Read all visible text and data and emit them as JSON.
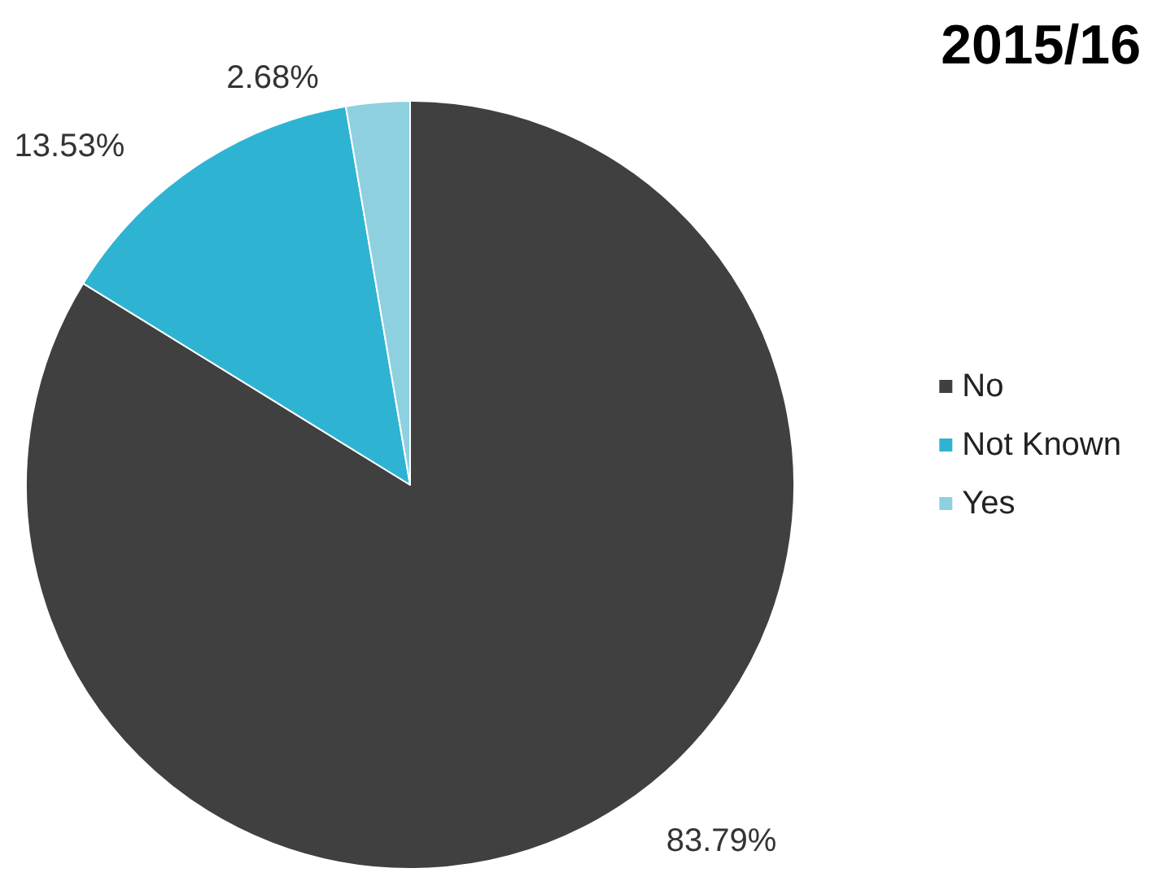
{
  "chart_data": {
    "type": "pie",
    "title": "2015/16",
    "categories": [
      "No",
      "Not Known",
      "Yes"
    ],
    "values": [
      83.79,
      13.53,
      2.68
    ],
    "value_labels": [
      "83.79%",
      "13.53%",
      "2.68%"
    ],
    "colors": [
      "#404040",
      "#2eb4d2",
      "#8fd0e0"
    ],
    "legend": "right"
  }
}
